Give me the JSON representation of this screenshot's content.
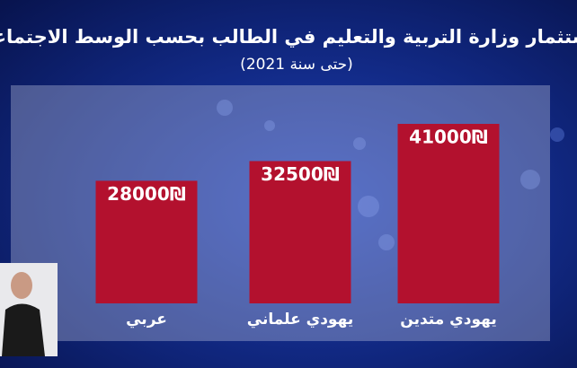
{
  "chart_data": {
    "type": "bar",
    "title": "استثمار وزارة التربية والتعليم في الطالب بحسب الوسط الاجتماعي",
    "subtitle": "(حتى سنة 2021)",
    "categories": [
      "عربي",
      "يهودي علماني",
      "يهودي متدين"
    ],
    "values": [
      28000,
      32500,
      41000
    ],
    "value_labels": [
      "28000₪",
      "32500₪",
      "41000₪"
    ],
    "color": "#b3112e"
  }
}
